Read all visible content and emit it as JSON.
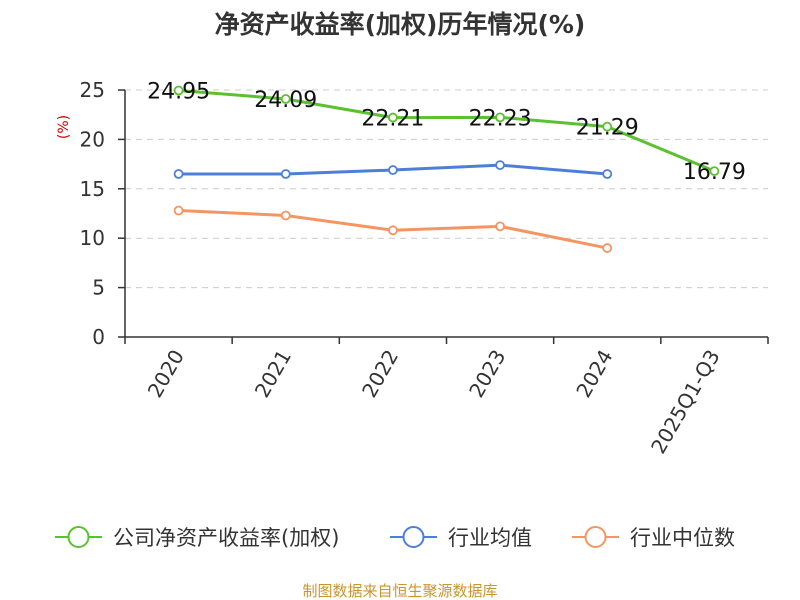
{
  "chart_data": {
    "type": "line",
    "title": "净资产收益率(加权)历年情况(%)",
    "ylabel": "(%)",
    "xlabel": "",
    "ylim": [
      0,
      25
    ],
    "yticks": [
      0,
      5,
      10,
      15,
      20,
      25
    ],
    "grid": true,
    "legend_position": "bottom",
    "categories": [
      "2020",
      "2021",
      "2022",
      "2023",
      "2024",
      "2025Q1-Q3"
    ],
    "series": [
      {
        "name": "公司净资产收益率(加权)",
        "color": "#5cc12e",
        "values": [
          24.95,
          24.09,
          22.21,
          22.23,
          21.29,
          16.79
        ],
        "labels": [
          "24.95",
          "24.09",
          "22.21",
          "22.23",
          "21.29",
          "16.79"
        ]
      },
      {
        "name": "行业均值",
        "color": "#4e7fd8",
        "values": [
          16.5,
          16.5,
          16.9,
          17.4,
          16.5,
          null
        ]
      },
      {
        "name": "行业中位数",
        "color": "#f59562",
        "values": [
          12.8,
          12.3,
          10.8,
          11.2,
          9.0,
          null
        ]
      }
    ]
  },
  "footer": {
    "source": "制图数据来自恒生聚源数据库"
  }
}
